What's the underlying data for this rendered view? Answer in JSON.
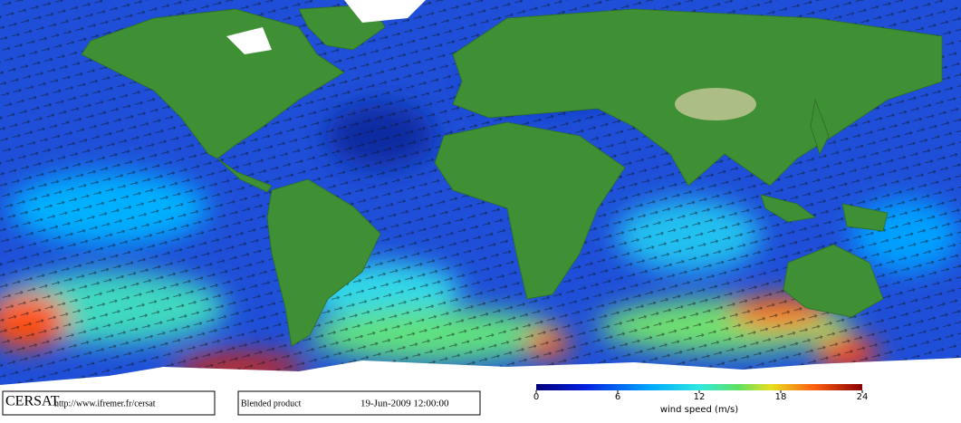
{
  "footer": {
    "logo": "CERSAT",
    "url": "http://www.ifremer.fr/cersat",
    "product": "Blended product",
    "timestamp": "19-Jun-2009 12:00:00"
  },
  "colorbar": {
    "label": "wind speed (m/s)",
    "lim": [
      0,
      24
    ],
    "ticks": [
      0,
      6,
      12,
      18,
      24
    ]
  }
}
